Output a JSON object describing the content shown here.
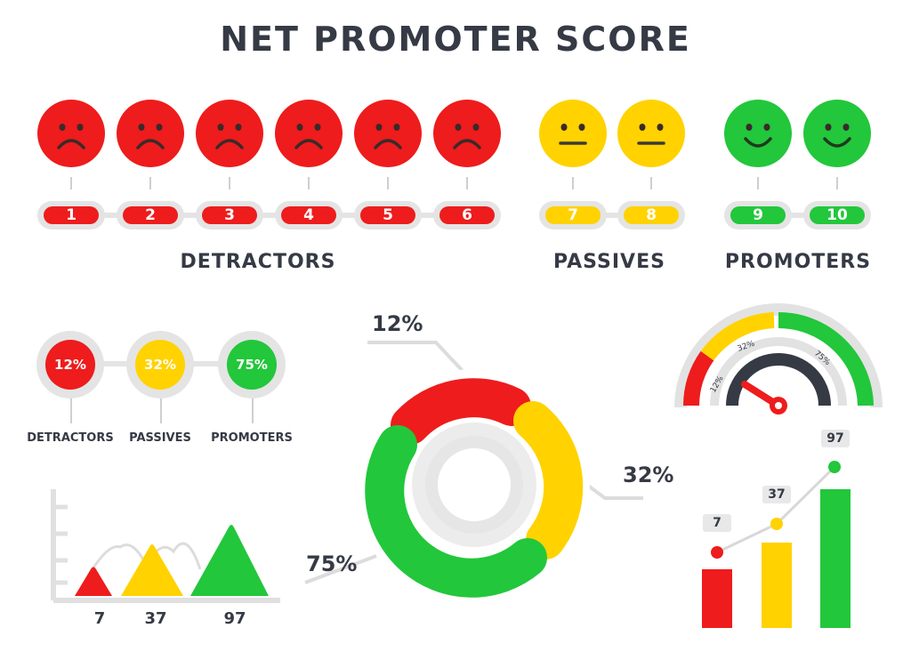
{
  "title": "NET PROMOTER SCORE",
  "colors": {
    "red": "#ee1c1c",
    "yellow": "#ffd200",
    "green": "#22c73b",
    "gray": "#e4e4e4",
    "text": "#353a45"
  },
  "scale": {
    "numbers": [
      "1",
      "2",
      "3",
      "4",
      "5",
      "6",
      "7",
      "8",
      "9",
      "10"
    ],
    "groups": {
      "detractors": "DETRACTORS",
      "passives": "PASSIVES",
      "promoters": "PROMOTERS"
    }
  },
  "mini": {
    "items": [
      {
        "value": "12%",
        "label": "DETRACTORS"
      },
      {
        "value": "32%",
        "label": "PASSIVES"
      },
      {
        "value": "75%",
        "label": "PROMOTERS"
      }
    ]
  },
  "donut": {
    "red_label": "12%",
    "yellow_label": "32%",
    "green_label": "75%"
  },
  "gauge": {
    "labels": [
      "12%",
      "32%",
      "75%"
    ]
  },
  "mountain": {
    "values": [
      "7",
      "37",
      "97"
    ]
  },
  "bars": {
    "values": [
      "7",
      "37",
      "97"
    ]
  }
}
